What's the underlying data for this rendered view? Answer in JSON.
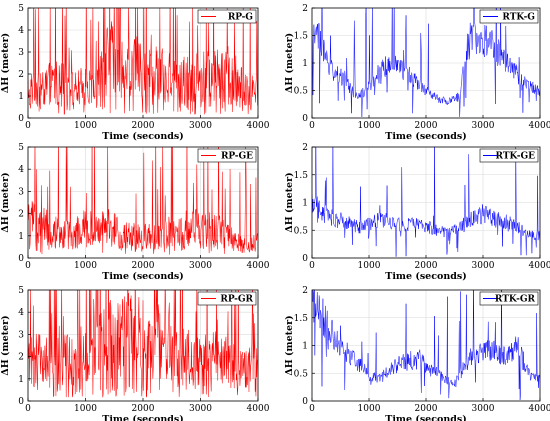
{
  "chart_data": [
    {
      "type": "line",
      "id": "rp-g",
      "xlabel": "Time (seconds)",
      "ylabel": "ΔH (meter)",
      "xlim": [
        0,
        4000
      ],
      "ylim": [
        0,
        5
      ],
      "xticks": [
        0,
        1000,
        2000,
        3000,
        4000
      ],
      "yticks": [
        0,
        1,
        2,
        3,
        4,
        5
      ],
      "grid": true,
      "legend_position": "top-right",
      "series": [
        {
          "name": "RP-G",
          "color": "#ff0000",
          "x": [
            0,
            200,
            400,
            600,
            800,
            1000,
            1200,
            1300,
            1400,
            1600,
            1800,
            2000,
            2200,
            2400,
            2600,
            2800,
            3000,
            3200,
            3400,
            3600,
            3800,
            4000
          ],
          "y": [
            1.4,
            1.3,
            1.7,
            1.6,
            1.3,
            1.5,
            1.3,
            2.5,
            2.8,
            2.6,
            2.4,
            2.3,
            2.1,
            2.0,
            2.0,
            1.8,
            1.9,
            1.9,
            2.0,
            2.1,
            1.3,
            1.2
          ]
        }
      ]
    },
    {
      "type": "line",
      "id": "rtk-g",
      "xlabel": "Time (seconds)",
      "ylabel": "ΔH (meter)",
      "xlim": [
        0,
        4000
      ],
      "ylim": [
        0,
        2
      ],
      "xticks": [
        0,
        1000,
        2000,
        3000,
        4000
      ],
      "yticks": [
        0,
        0.5,
        1,
        1.5,
        2
      ],
      "grid": true,
      "legend_position": "top-right",
      "series": [
        {
          "name": "RTK-G",
          "color": "#0000ff",
          "x": [
            0,
            100,
            200,
            300,
            400,
            500,
            600,
            700,
            800,
            1000,
            1200,
            1400,
            1500,
            1600,
            1800,
            2000,
            2200,
            2400,
            2600,
            2700,
            2800,
            3000,
            3200,
            3400,
            3600,
            3800,
            4000
          ],
          "y": [
            1.4,
            1.5,
            1.2,
            0.9,
            0.8,
            0.75,
            0.7,
            0.5,
            0.4,
            0.55,
            0.85,
            1.0,
            0.95,
            0.85,
            0.7,
            0.5,
            0.35,
            0.3,
            0.4,
            1.2,
            1.5,
            1.4,
            1.3,
            1.0,
            0.8,
            0.6,
            0.5
          ]
        }
      ]
    },
    {
      "type": "line",
      "id": "rp-ge",
      "xlabel": "Time (seconds)",
      "ylabel": "ΔH (meter)",
      "xlim": [
        0,
        4000
      ],
      "ylim": [
        0,
        5
      ],
      "xticks": [
        0,
        1000,
        2000,
        3000,
        4000
      ],
      "yticks": [
        0,
        1,
        2,
        3,
        4,
        5
      ],
      "grid": true,
      "legend_position": "top-right",
      "series": [
        {
          "name": "RP-GE",
          "color": "#ff0000",
          "x": [
            0,
            200,
            400,
            600,
            800,
            1000,
            1200,
            1400,
            1600,
            1800,
            2000,
            2200,
            2400,
            2600,
            2800,
            3000,
            3200,
            3400,
            3600,
            3800,
            4000
          ],
          "y": [
            1.7,
            1.5,
            1.3,
            1.1,
            1.1,
            1.4,
            1.6,
            1.4,
            1.2,
            1.0,
            1.0,
            1.0,
            1.2,
            1.1,
            1.5,
            1.3,
            1.4,
            1.2,
            0.8,
            0.6,
            0.7
          ]
        }
      ]
    },
    {
      "type": "line",
      "id": "rtk-ge",
      "xlabel": "Time (seconds)",
      "ylabel": "ΔH (meter)",
      "xlim": [
        0,
        4000
      ],
      "ylim": [
        0,
        2
      ],
      "xticks": [
        0,
        1000,
        2000,
        3000,
        4000
      ],
      "yticks": [
        0,
        0.5,
        1,
        1.5,
        2
      ],
      "grid": true,
      "legend_position": "top-right",
      "series": [
        {
          "name": "RTK-GE",
          "color": "#0000ff",
          "x": [
            0,
            200,
            400,
            600,
            800,
            1000,
            1200,
            1400,
            1600,
            1800,
            2000,
            2200,
            2400,
            2600,
            2800,
            3000,
            3200,
            3400,
            3600,
            3800,
            4000
          ],
          "y": [
            1.0,
            0.8,
            0.7,
            0.65,
            0.55,
            0.6,
            0.7,
            0.65,
            0.6,
            0.6,
            0.58,
            0.5,
            0.45,
            0.55,
            0.7,
            0.8,
            0.7,
            0.65,
            0.55,
            0.45,
            0.4
          ]
        }
      ]
    },
    {
      "type": "line",
      "id": "rp-gr",
      "xlabel": "Time (seconds)",
      "ylabel": "ΔH (meter)",
      "xlim": [
        0,
        4000
      ],
      "ylim": [
        0,
        5
      ],
      "xticks": [
        0,
        1000,
        2000,
        3000,
        4000
      ],
      "yticks": [
        0,
        1,
        2,
        3,
        4,
        5
      ],
      "grid": true,
      "legend_position": "top-right",
      "series": [
        {
          "name": "RP-GR",
          "color": "#ff0000",
          "x": [
            0,
            200,
            400,
            600,
            800,
            1000,
            1200,
            1400,
            1600,
            1800,
            2000,
            2200,
            2400,
            2600,
            2800,
            3000,
            3200,
            3400,
            3600,
            3800,
            4000
          ],
          "y": [
            2.0,
            1.9,
            1.8,
            1.9,
            2.0,
            2.3,
            2.5,
            2.8,
            3.0,
            3.1,
            3.0,
            2.8,
            2.6,
            2.4,
            2.0,
            1.8,
            2.0,
            1.9,
            1.6,
            1.5,
            1.8
          ]
        }
      ]
    },
    {
      "type": "line",
      "id": "rtk-gr",
      "xlabel": "Time (seconds)",
      "ylabel": "ΔH (meter)",
      "xlim": [
        0,
        4000
      ],
      "ylim": [
        0,
        2
      ],
      "xticks": [
        0,
        1000,
        2000,
        3000,
        4000
      ],
      "yticks": [
        0,
        0.5,
        1,
        1.5,
        2
      ],
      "grid": true,
      "legend_position": "top-right",
      "series": [
        {
          "name": "RTK-GR",
          "color": "#0000ff",
          "x": [
            0,
            100,
            300,
            500,
            700,
            900,
            1000,
            1200,
            1400,
            1600,
            1800,
            1900,
            2000,
            2200,
            2400,
            2500,
            2600,
            2800,
            3000,
            3200,
            3400,
            3600,
            3800,
            3900,
            4000
          ],
          "y": [
            1.8,
            1.7,
            1.3,
            1.0,
            0.8,
            0.6,
            0.45,
            0.4,
            0.6,
            0.7,
            0.7,
            0.8,
            0.6,
            0.5,
            0.35,
            0.3,
            0.5,
            0.8,
            0.9,
            0.9,
            0.8,
            1.0,
            0.5,
            0.4,
            0.4
          ]
        }
      ]
    }
  ]
}
